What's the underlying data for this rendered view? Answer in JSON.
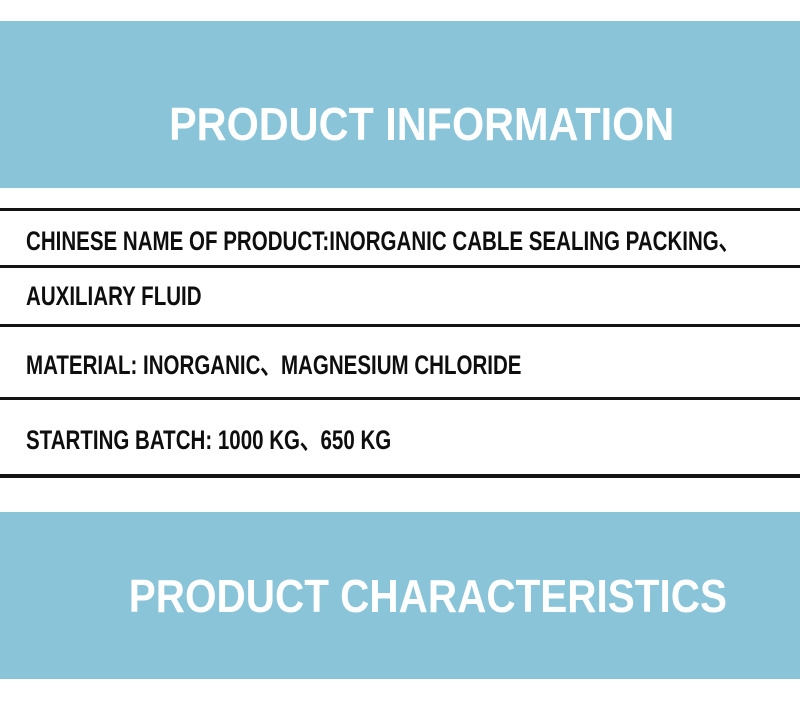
{
  "sections": {
    "top_banner": {
      "title": "PRODUCT INFORMATION"
    },
    "bottom_banner": {
      "title": "PRODUCT CHARACTERISTICS"
    }
  },
  "info_table": {
    "rows": [
      {
        "text": "CHINESE NAME OF PRODUCT:INORGANIC CABLE SEALING PACKING、"
      },
      {
        "text": "AUXILIARY FLUID"
      },
      {
        "text": "MATERIAL: INORGANIC、MAGNESIUM CHLORIDE"
      },
      {
        "text": "STARTING BATCH: 1000 KG、650 KG"
      }
    ]
  },
  "colors": {
    "banner_blue": "#89c4d9",
    "rule_black": "#141414",
    "title_white": "#ffffff",
    "body_text": "#0e0e0e"
  }
}
